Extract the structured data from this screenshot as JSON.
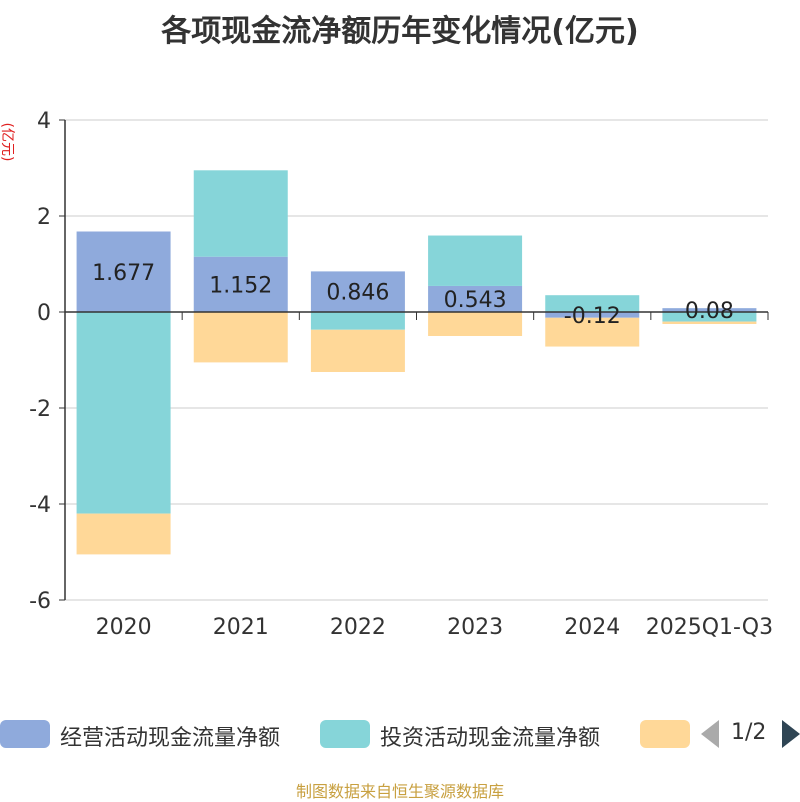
{
  "title": "各项现金流净额历年变化情况(亿元)",
  "y_unit": "(亿元)",
  "footer": "制图数据来自恒生聚源数据库",
  "legend": {
    "items": [
      {
        "label": "经营活动现金流量净额",
        "color": "#8faadc"
      },
      {
        "label": "投资活动现金流量净额",
        "color": "#86d5d9"
      },
      {
        "label": "",
        "color": "#ffd898"
      }
    ],
    "page": "1/2"
  },
  "chart_data": {
    "type": "bar",
    "stacked": true,
    "categories": [
      "2020",
      "2021",
      "2022",
      "2023",
      "2024",
      "2025Q1-Q3"
    ],
    "ylim": [
      -6,
      4
    ],
    "yticks": [
      4,
      2,
      0,
      -2,
      -4,
      -6
    ],
    "grid": true,
    "series": [
      {
        "name": "经营活动现金流量净额",
        "color": "#8faadc",
        "values": [
          1.677,
          1.152,
          0.846,
          0.543,
          -0.12,
          0.08
        ],
        "labels": [
          "1.677",
          "1.152",
          "0.846",
          "0.543",
          "-0.12",
          "0.08"
        ]
      },
      {
        "name": "投资活动现金流量净额",
        "color": "#86d5d9",
        "values": [
          -4.2,
          1.8,
          -0.37,
          1.05,
          0.35,
          -0.2
        ]
      },
      {
        "name": "",
        "color": "#ffd898",
        "values": [
          -0.85,
          -1.05,
          -0.88,
          -0.5,
          -0.6,
          -0.05
        ]
      }
    ]
  }
}
